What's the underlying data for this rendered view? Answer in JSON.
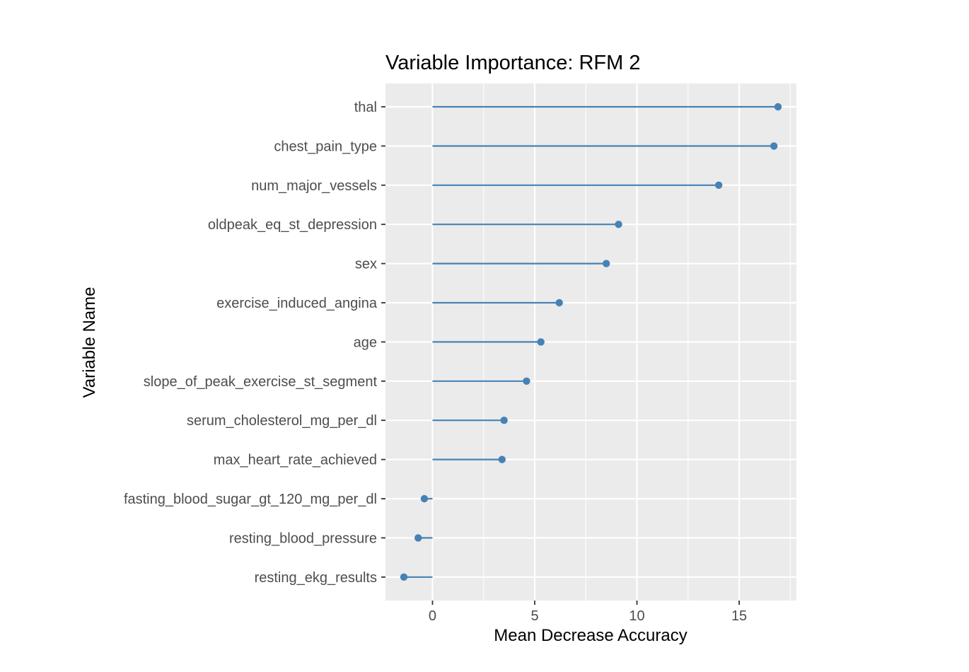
{
  "chart_data": {
    "type": "lollipop",
    "title": "Variable Importance: RFM 2",
    "xlabel": "Mean Decrease Accuracy",
    "ylabel": "Variable Name",
    "xlim": [
      -2.3,
      17.8
    ],
    "x_ticks": [
      0,
      5,
      10,
      15
    ],
    "grid": true,
    "legend": "none",
    "categories": [
      "thal",
      "chest_pain_type",
      "num_major_vessels",
      "oldpeak_eq_st_depression",
      "sex",
      "exercise_induced_angina",
      "age",
      "slope_of_peak_exercise_st_segment",
      "serum_cholesterol_mg_per_dl",
      "max_heart_rate_achieved",
      "fasting_blood_sugar_gt_120_mg_per_dl",
      "resting_blood_pressure",
      "resting_ekg_results"
    ],
    "values": [
      16.9,
      16.7,
      14.0,
      9.1,
      8.5,
      6.2,
      5.3,
      4.6,
      3.5,
      3.4,
      -0.4,
      -0.7,
      -1.4
    ],
    "colors": {
      "mark": "#4682b4",
      "panel": "#ebebeb",
      "grid": "#ffffff",
      "tick_label": "#4d4d4d"
    }
  }
}
